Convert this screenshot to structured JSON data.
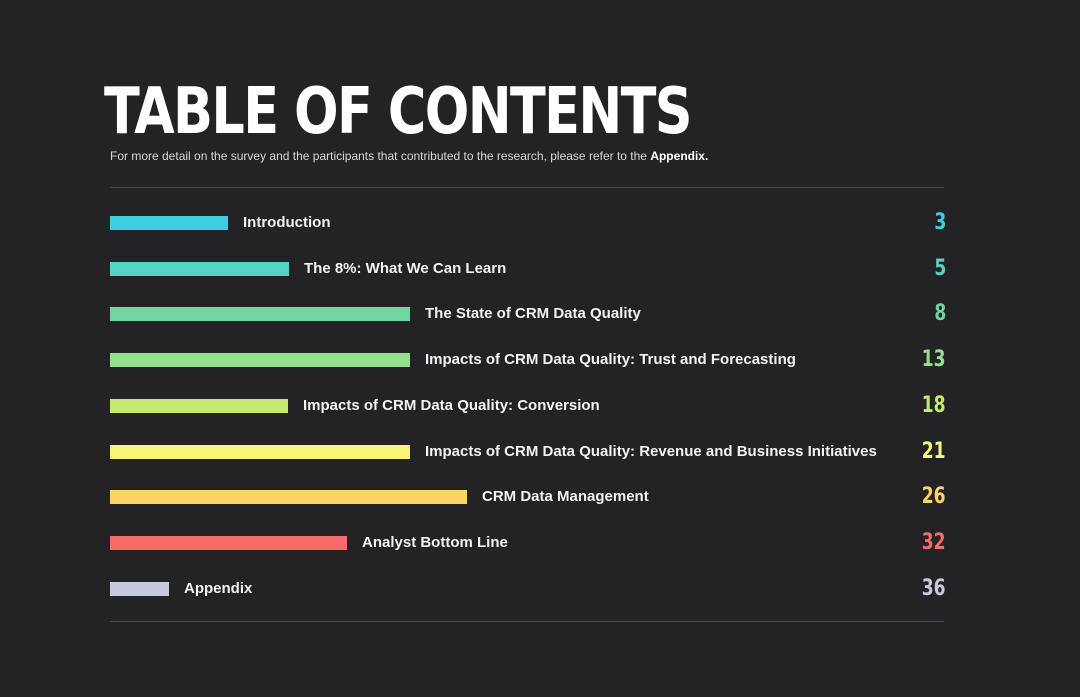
{
  "header": {
    "title": "TABLE OF CONTENTS",
    "subtitle_text": "For more detail on the survey and the participants that contributed to the research, please refer to the ",
    "subtitle_link": "Appendix."
  },
  "toc": {
    "items": [
      {
        "label": "Introduction",
        "page": "3",
        "color": "#3cd0e0"
      },
      {
        "label": "The 8%: What We Can Learn",
        "page": "5",
        "color": "#55d3c4"
      },
      {
        "label": "The State of CRM Data Quality",
        "page": "8",
        "color": "#6fd6a2"
      },
      {
        "label": "Impacts of CRM Data Quality: Trust and Forecasting",
        "page": "13",
        "color": "#95e08f"
      },
      {
        "label": "Impacts of CRM Data Quality: Conversion",
        "page": "18",
        "color": "#c4ea72"
      },
      {
        "label": "Impacts of CRM Data Quality: Revenue and Business Initiatives",
        "page": "21",
        "color": "#f6f57a"
      },
      {
        "label": "CRM Data Management",
        "page": "26",
        "color": "#fdd468"
      },
      {
        "label": "Analyst Bottom Line",
        "page": "32",
        "color": "#f76b6b"
      },
      {
        "label": "Appendix",
        "page": "36",
        "color": "#c7c9dc"
      }
    ]
  }
}
